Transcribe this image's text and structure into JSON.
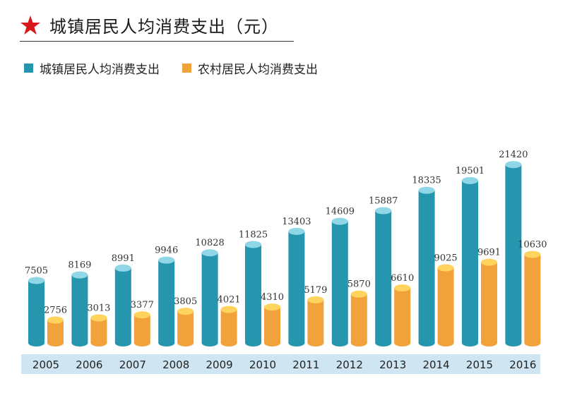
{
  "title": "城镇居民人均消费支出（元）",
  "colors": {
    "urban": "#2596ad",
    "urban_top": "#8fd6e6",
    "rural": "#f2a23a",
    "rural_top": "#ffd35c",
    "axis_band": "#cfe6f2",
    "title_star": "#d7191c"
  },
  "chart_data": {
    "type": "bar",
    "title": "城镇居民人均消费支出（元）",
    "xlabel": "",
    "ylabel": "",
    "ylim": [
      0,
      22000
    ],
    "legend_position": "top-left",
    "grid": false,
    "categories": [
      "2005",
      "2006",
      "2007",
      "2008",
      "2009",
      "2010",
      "2011",
      "2012",
      "2013",
      "2014",
      "2015",
      "2016"
    ],
    "series": [
      {
        "name": "城镇居民人均消费支出",
        "values": [
          7505,
          8169,
          8991,
          9946,
          10828,
          11825,
          13403,
          14609,
          15887,
          18335,
          19501,
          21420
        ]
      },
      {
        "name": "农村居民人均消费支出",
        "values": [
          2756,
          3013,
          3377,
          3805,
          4021,
          4310,
          5179,
          5870,
          6610,
          9025,
          9691,
          10630
        ]
      }
    ]
  }
}
